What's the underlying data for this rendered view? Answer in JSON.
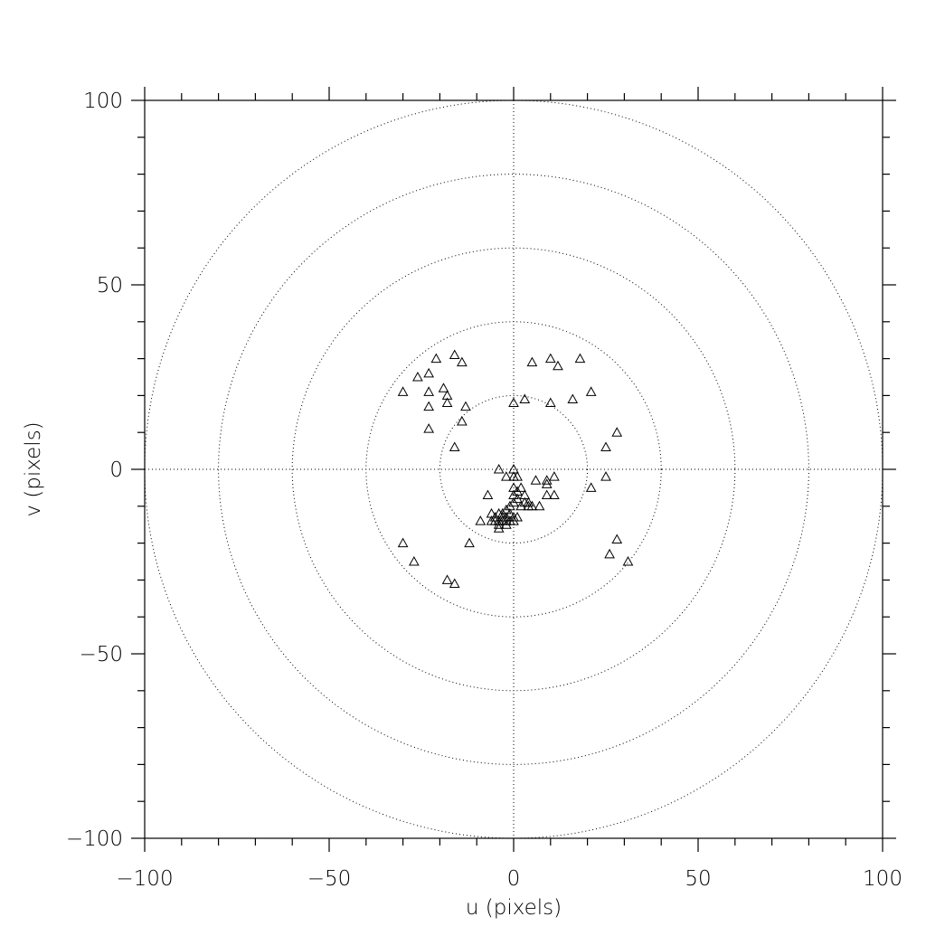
{
  "chart_data": {
    "type": "scatter",
    "title": "",
    "xlabel": "u (pixels)",
    "ylabel": "v (pixels)",
    "xlim": [
      -100,
      100
    ],
    "ylim": [
      -100,
      100
    ],
    "x_major_ticks": [
      -100,
      -50,
      0,
      50,
      100
    ],
    "y_major_ticks": [
      -100,
      -50,
      0,
      50,
      100
    ],
    "x_tick_labels": [
      "−100",
      "−50",
      "0",
      "50",
      "100"
    ],
    "y_tick_labels": [
      "−100",
      "−50",
      "0",
      "50",
      "100"
    ],
    "minor_tick_step": 10,
    "grid": {
      "crosshair_at_origin": true,
      "concentric_circle_radii": [
        20,
        40,
        60,
        80,
        100
      ],
      "style": "dotted"
    },
    "marker": "open-triangle",
    "series": [
      {
        "points": [
          [
            -30,
            21
          ],
          [
            -26,
            25
          ],
          [
            -23,
            26
          ],
          [
            -23,
            21
          ],
          [
            -23,
            17
          ],
          [
            -23,
            11
          ],
          [
            -21,
            30
          ],
          [
            -19,
            22
          ],
          [
            -18,
            20
          ],
          [
            -18,
            18
          ],
          [
            -16,
            31
          ],
          [
            -14,
            29
          ],
          [
            -13,
            17
          ],
          [
            -14,
            13
          ],
          [
            -16,
            6
          ],
          [
            0,
            18
          ],
          [
            3,
            19
          ],
          [
            5,
            29
          ],
          [
            10,
            30
          ],
          [
            12,
            28
          ],
          [
            18,
            30
          ],
          [
            16,
            19
          ],
          [
            21,
            21
          ],
          [
            10,
            18
          ],
          [
            28,
            10
          ],
          [
            25,
            6
          ],
          [
            25,
            -2
          ],
          [
            21,
            -5
          ],
          [
            6,
            -3
          ],
          [
            9,
            -4
          ],
          [
            9,
            -3
          ],
          [
            9,
            -7
          ],
          [
            11,
            -2
          ],
          [
            11,
            -7
          ],
          [
            -4,
            0
          ],
          [
            -2,
            -2
          ],
          [
            0,
            0
          ],
          [
            0,
            -2
          ],
          [
            1,
            -2
          ],
          [
            -7,
            -7
          ],
          [
            -9,
            -14
          ],
          [
            -12,
            -20
          ],
          [
            0,
            -5
          ],
          [
            0,
            -7
          ],
          [
            0,
            -9
          ],
          [
            1,
            -6
          ],
          [
            1,
            -8
          ],
          [
            2,
            -5
          ],
          [
            2,
            -10
          ],
          [
            3,
            -7
          ],
          [
            3,
            -9
          ],
          [
            4,
            -9
          ],
          [
            4,
            -10
          ],
          [
            5,
            -10
          ],
          [
            7,
            -10
          ],
          [
            -1,
            -10
          ],
          [
            -1,
            -12
          ],
          [
            -2,
            -11
          ],
          [
            -2,
            -13
          ],
          [
            -3,
            -12
          ],
          [
            -3,
            -13
          ],
          [
            -3,
            -14
          ],
          [
            -4,
            -12
          ],
          [
            -4,
            -14
          ],
          [
            -4,
            -15
          ],
          [
            -4,
            -16
          ],
          [
            -5,
            -13
          ],
          [
            -5,
            -14
          ],
          [
            -6,
            -12
          ],
          [
            -6,
            -14
          ],
          [
            -2,
            -14
          ],
          [
            -1,
            -14
          ],
          [
            0,
            -13
          ],
          [
            0,
            -14
          ],
          [
            1,
            -13
          ],
          [
            -2,
            -15
          ],
          [
            -30,
            -20
          ],
          [
            -27,
            -25
          ],
          [
            -18,
            -30
          ],
          [
            -16,
            -31
          ],
          [
            28,
            -19
          ],
          [
            26,
            -23
          ],
          [
            31,
            -25
          ]
        ]
      }
    ]
  }
}
